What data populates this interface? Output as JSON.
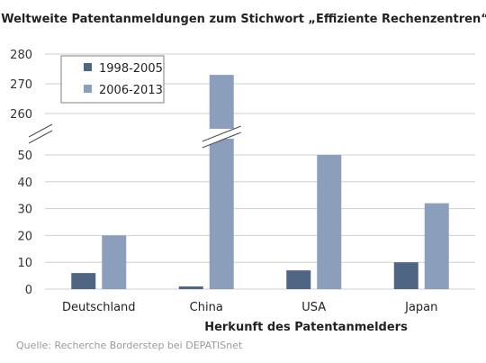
{
  "chart_data": {
    "type": "bar",
    "title": "Weltweite Patentanmeldungen zum Stichwort „Effiziente Rechenzentren“",
    "xlabel": "Herkunft des Patentanmelders",
    "ylabel": "",
    "categories": [
      "Deutschland",
      "China",
      "USA",
      "Japan"
    ],
    "series": [
      {
        "name": "1998-2005",
        "values": [
          6,
          1,
          7,
          10
        ],
        "color": "#4f6584"
      },
      {
        "name": "2006-2013",
        "values": [
          20,
          273,
          50,
          32
        ],
        "color": "#8b9fbc"
      }
    ],
    "axis_break": true,
    "y_lower_ticks": [
      "0",
      "10",
      "20",
      "30",
      "40",
      "50"
    ],
    "y_upper_ticks": [
      "260",
      "270",
      "280"
    ],
    "ylim_lower": [
      0,
      50
    ],
    "ylim_upper": [
      260,
      280
    ],
    "grid": true,
    "legend": "top-left",
    "source": "Quelle: Recherche Borderstep bei DEPATISnet"
  }
}
